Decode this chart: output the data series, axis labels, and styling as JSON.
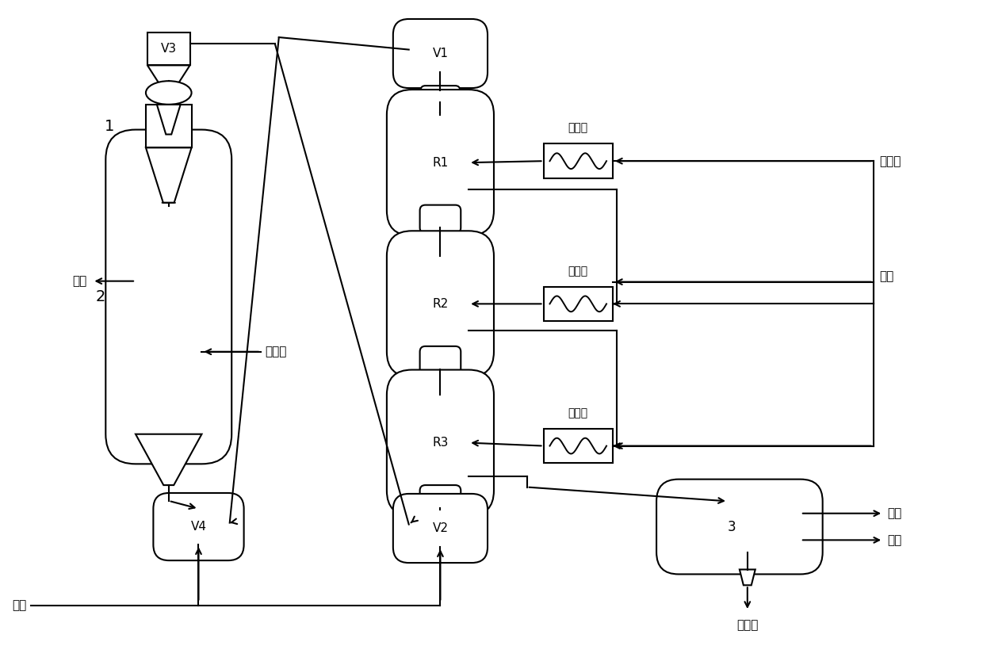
{
  "bg_color": "#ffffff",
  "line_color": "#000000",
  "font_color": "#000000",
  "labels": {
    "yanqi": "烟气",
    "zaishengqi": "再生气",
    "qiqi": "气水",
    "shijingyou": "石脲油",
    "jiachun": "甲醇",
    "qiti": "气体",
    "qiyou": "汽油",
    "shengchengshui": "生成水",
    "yureilu": "预热炉"
  },
  "V3_label": "V3",
  "V1_label": "V1",
  "V4_label": "V4",
  "V2_label": "V2",
  "unit1_label": "1",
  "unit2_label": "2",
  "unit3_label": "3",
  "R1_label": "R1",
  "R2_label": "R2",
  "R3_label": "R3"
}
